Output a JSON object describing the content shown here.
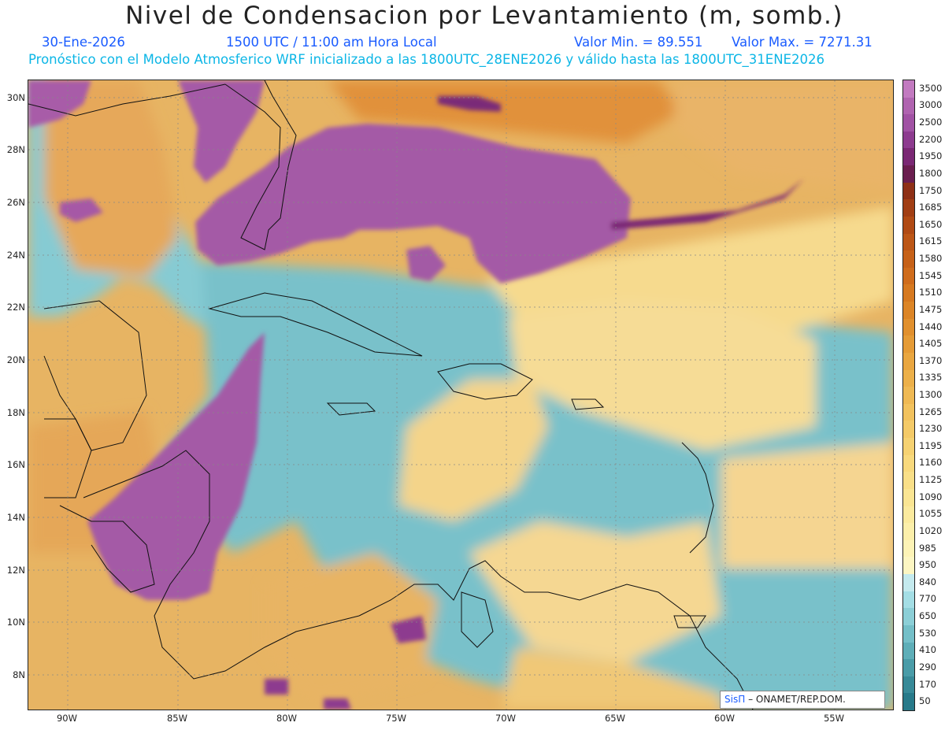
{
  "header": {
    "title": "Nivel de Condensacion por Levantamiento (m, somb.)",
    "date": "30-Ene-2026",
    "time": "1500 UTC / 11:00 am Hora Local",
    "min_label": "Valor Min. = 89.551",
    "max_label": "Valor Max. = 7271.31",
    "model_line": "Pronóstico con el Modelo Atmosferico WRF inicializado a las 1800UTC_28ENE2026 y válido hasta las  1800UTC_31ENE2026"
  },
  "axes": {
    "lat_labels": [
      "30N",
      "28N",
      "26N",
      "24N",
      "22N",
      "20N",
      "18N",
      "16N",
      "14N",
      "12N",
      "10N",
      "8N"
    ],
    "lon_labels": [
      "90W",
      "85W",
      "80W",
      "75W",
      "70W",
      "65W",
      "60W",
      "55W"
    ]
  },
  "colorbar": {
    "labels": [
      "3500",
      "3000",
      "2500",
      "2200",
      "1950",
      "1800",
      "1750",
      "1685",
      "1650",
      "1615",
      "1580",
      "1545",
      "1510",
      "1475",
      "1440",
      "1405",
      "1370",
      "1335",
      "1300",
      "1265",
      "1230",
      "1195",
      "1160",
      "1125",
      "1090",
      "1055",
      "1020",
      "985",
      "950",
      "840",
      "770",
      "650",
      "530",
      "410",
      "290",
      "170",
      "50"
    ],
    "colors": [
      "#c27ac0",
      "#b064b0",
      "#a152a4",
      "#8d3b8f",
      "#7a2874",
      "#6a1e4f",
      "#8e3016",
      "#a13e14",
      "#b04a14",
      "#bc5616",
      "#c66118",
      "#cf6c1c",
      "#d67920",
      "#dc8526",
      "#e1902e",
      "#e59b36",
      "#e9a640",
      "#ecb04a",
      "#efb954",
      "#f2c25e",
      "#f4ca68",
      "#f6d272",
      "#f8d97d",
      "#f9df88",
      "#fae593",
      "#fbea9e",
      "#fcefaa",
      "#fdf3b6",
      "#fdf6c2",
      "#c4eaee",
      "#a4dee5",
      "#8ccfd7",
      "#74bfc8",
      "#5eaeb8",
      "#4a9ca8",
      "#388a98",
      "#287a8a"
    ]
  },
  "credit": {
    "brand": "SisΠ",
    "org": "– ONAMET/REP.DOM."
  }
}
